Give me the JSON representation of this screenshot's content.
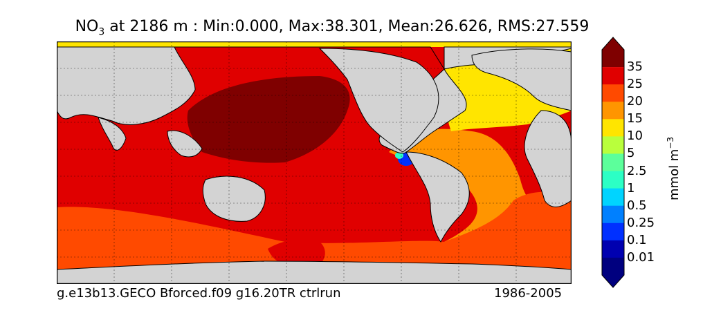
{
  "title": {
    "var": "NO",
    "sub": "3",
    "rest": " at 2186 m : Min:0.000, Max:38.301, Mean:26.626, RMS:27.559"
  },
  "footer": {
    "left": "g.e13b13.GECO Bforced.f09 g16.20TR ctrlrun",
    "right": "1986-2005"
  },
  "colorbar": {
    "unit": "mmol m",
    "unit_exp": "−3",
    "labels": [
      "35",
      "25",
      "20",
      "15",
      "10",
      "5",
      "2.5",
      "1",
      "0.5",
      "0.25",
      "0.1",
      "0.01"
    ],
    "colors": [
      "#7f0000",
      "#e00000",
      "#ff4a00",
      "#ff9500",
      "#ffe500",
      "#b9ff3c",
      "#5cff9b",
      "#2cffc5",
      "#00d4ff",
      "#0080ff",
      "#0030ff",
      "#0000b0",
      "#00007f"
    ]
  },
  "map": {
    "land_color": "#d3d3d3",
    "ice_color": "#ffffff"
  }
}
